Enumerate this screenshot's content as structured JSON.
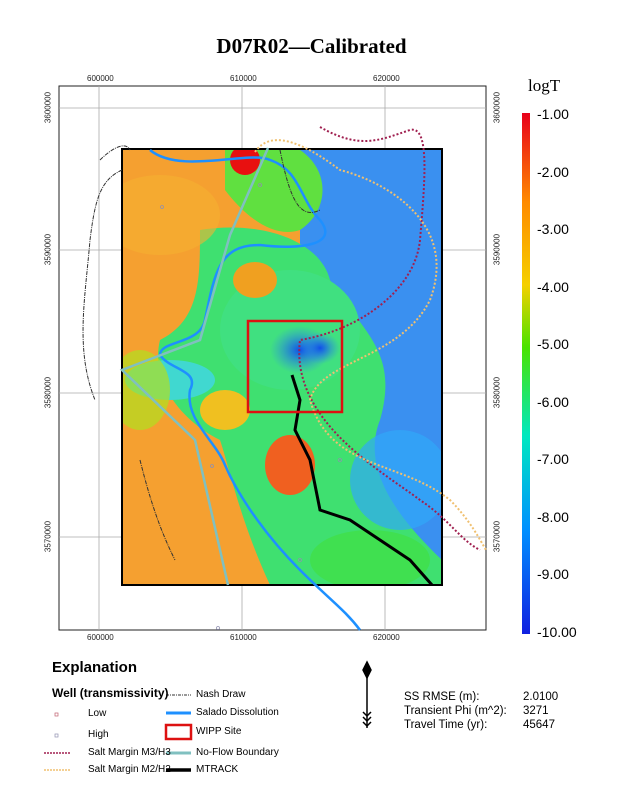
{
  "title": "D07R02—Calibrated",
  "map": {
    "x_ticks": [
      "600000",
      "610000",
      "620000"
    ],
    "y_ticks": [
      "3600000",
      "3590000",
      "3580000",
      "3570000"
    ]
  },
  "colorbar": {
    "title": "logT",
    "labels": [
      "-1.00",
      "-2.00",
      "-3.00",
      "-4.00",
      "-5.00",
      "-6.00",
      "-7.00",
      "-8.00",
      "-9.00",
      "-10.00"
    ],
    "range": [
      -10,
      -1
    ],
    "colors": [
      "#e8001a",
      "#ff8a00",
      "#f5d000",
      "#49e300",
      "#00e8c0",
      "#0090ff",
      "#1020e0"
    ]
  },
  "legend": {
    "heading": "Explanation",
    "well_heading": "Well (transmissivity)",
    "items_left": [
      {
        "label": "Low",
        "color": "#c06070"
      },
      {
        "label": "High",
        "color": "#9090b0"
      },
      {
        "label": "Salt Margin M3/H3",
        "color": "#a02050"
      },
      {
        "label": "Salt Margin M2/H2",
        "color": "#f0c070"
      }
    ],
    "items_right": [
      {
        "label": "Nash Draw",
        "color": "#333333"
      },
      {
        "label": "Salado Dissolution",
        "color": "#1e90ff"
      },
      {
        "label": "WIPP Site",
        "color": "#dd1111"
      },
      {
        "label": "No-Flow Boundary",
        "color": "#80c0c0"
      },
      {
        "label": "MTRACK",
        "color": "#000000"
      }
    ]
  },
  "stats": [
    {
      "label": "SS RMSE (m):",
      "value": "2.0100"
    },
    {
      "label": "Transient Phi (m^2):",
      "value": "3271"
    },
    {
      "label": "Travel Time (yr):",
      "value": "45647"
    }
  ]
}
